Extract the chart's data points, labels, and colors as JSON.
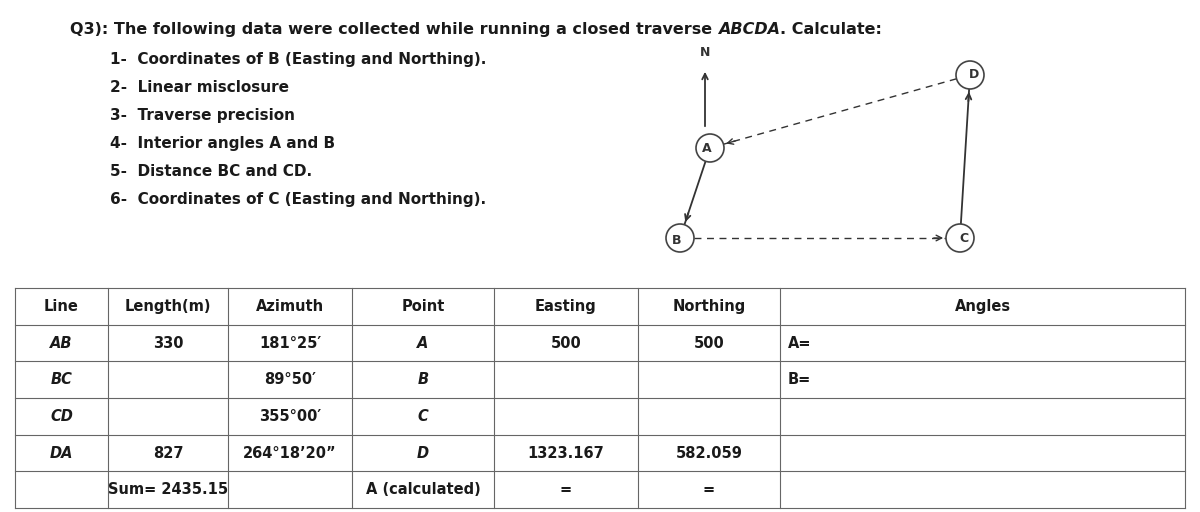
{
  "title_prefix": "Q3): The following data were collected while running a closed traverse ",
  "title_italic": "ABCDA",
  "title_suffix": ". Calculate:",
  "items": [
    "1-  Coordinates of B (Easting and Northing).",
    "2-  Linear misclosure",
    "3-  Traverse precision",
    "4-  Interior angles A and B",
    "5-  Distance BC and CD.",
    "6-  Coordinates of C (Easting and Northing)."
  ],
  "col_headers": [
    "Line",
    "Length(m)",
    "Azimuth",
    "Point",
    "Easting",
    "Northing",
    "Angles"
  ],
  "rows": [
    [
      "AB",
      "330",
      "181°25′",
      "A",
      "500",
      "500",
      "A="
    ],
    [
      "BC",
      "",
      "89°50′",
      "B",
      "",
      "",
      "B="
    ],
    [
      "CD",
      "",
      "355°00′",
      "C",
      "",
      "",
      ""
    ],
    [
      "DA",
      "827",
      "264°18’20”",
      "D",
      "1323.167",
      "582.059",
      ""
    ],
    [
      "",
      "Sum= 2435.15",
      "",
      "A (calculated)",
      "=",
      "=",
      ""
    ]
  ],
  "bg_color": "#ffffff",
  "text_color": "#1a1a1a",
  "table_line_color": "#666666",
  "title_fontsize": 11.5,
  "item_fontsize": 11.0,
  "table_header_fontsize": 10.5,
  "table_data_fontsize": 10.5
}
